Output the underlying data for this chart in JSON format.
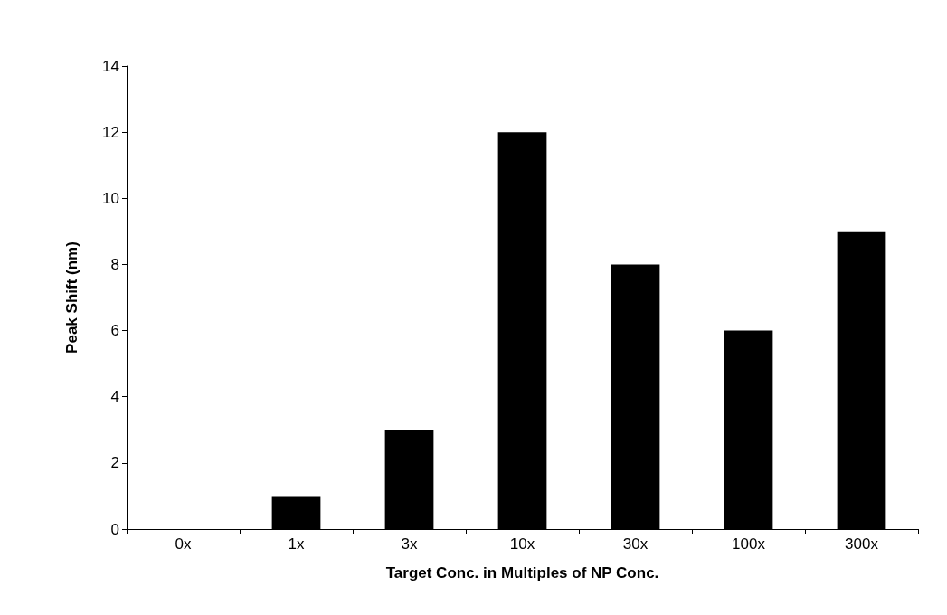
{
  "chart_data": {
    "type": "bar",
    "xlabel": "Target Conc. in Multiples of NP Conc.",
    "ylabel": "Peak Shift (nm)",
    "categories": [
      "0x",
      "1x",
      "3x",
      "10x",
      "30x",
      "100x",
      "300x"
    ],
    "values": [
      0,
      1,
      3,
      12,
      8,
      6,
      9
    ],
    "color": "#000000",
    "ylim": [
      0,
      14
    ],
    "yticks": [
      0,
      2,
      4,
      6,
      8,
      10,
      12,
      14
    ],
    "grid": false
  }
}
